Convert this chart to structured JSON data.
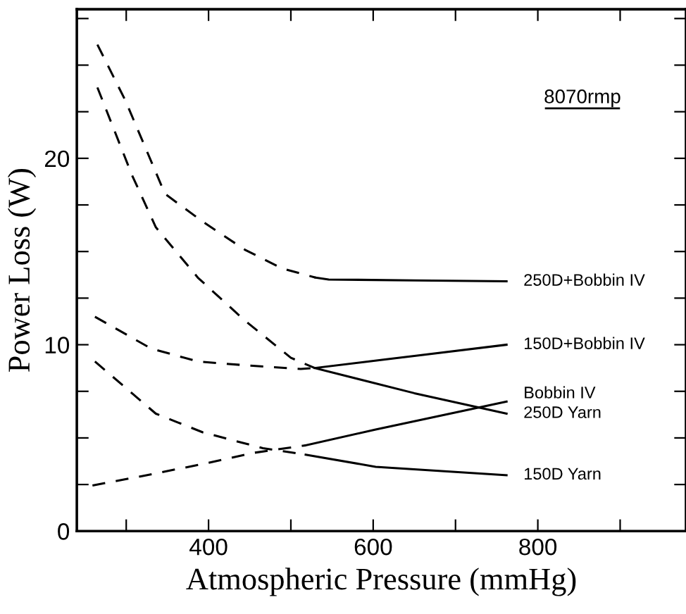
{
  "chart_data": {
    "type": "line",
    "xlabel": "Atmospheric Pressure (mmHg)",
    "ylabel": "Power Loss (W)",
    "annotations": [
      "8070rmp"
    ],
    "xlim": [
      240,
      980
    ],
    "ylim": [
      0,
      28
    ],
    "xticks": [
      {
        "value": 300,
        "label": null
      },
      400,
      {
        "value": 500,
        "label": null
      },
      600,
      {
        "value": 700,
        "label": null
      },
      800,
      {
        "value": 900,
        "label": null
      }
    ],
    "yticks": [
      0,
      {
        "value": 2.5,
        "label": null
      },
      {
        "value": 5,
        "label": null
      },
      {
        "value": 7.5,
        "label": null
      },
      10,
      {
        "value": 12.5,
        "label": null
      },
      {
        "value": 15,
        "label": null
      },
      {
        "value": 17.5,
        "label": null
      },
      20,
      {
        "value": 22.5,
        "label": null
      },
      {
        "value": 25,
        "label": null
      },
      {
        "value": 27.5,
        "label": null
      }
    ],
    "grid": false,
    "legend": "right",
    "marker": "none",
    "series": [
      {
        "color": "#000000",
        "line_style": "dashed",
        "x": [
          265,
          299,
          347,
          393,
          444,
          489,
          530
        ],
        "values": [
          26.1,
          23.1,
          18.1,
          16.6,
          15.1,
          14.1,
          13.6
        ]
      },
      {
        "name": "250D+Bobbin IV",
        "color": "#000000",
        "line_style": "solid",
        "x": [
          530,
          546,
          650,
          762
        ],
        "values": [
          13.6,
          13.5,
          13.45,
          13.4
        ]
      },
      {
        "color": "#000000",
        "line_style": "dashed",
        "x": [
          262,
          330,
          387,
          444,
          512,
          529
        ],
        "values": [
          11.5,
          9.8,
          9.1,
          8.9,
          8.7,
          8.75
        ]
      },
      {
        "name": "150D+Bobbin IV",
        "color": "#000000",
        "line_style": "solid",
        "x": [
          529,
          650,
          762
        ],
        "values": [
          8.75,
          9.4,
          10.0
        ]
      },
      {
        "color": "#000000",
        "line_style": "dashed",
        "x": [
          259,
          319,
          393,
          455,
          518
        ],
        "values": [
          2.45,
          2.95,
          3.6,
          4.2,
          4.6
        ]
      },
      {
        "name": "Bobbin IV",
        "color": "#000000",
        "line_style": "solid",
        "x": [
          518,
          603,
          762
        ],
        "values": [
          4.6,
          5.45,
          6.95
        ]
      },
      {
        "color": "#000000",
        "line_style": "dashed",
        "x": [
          265,
          307,
          336,
          387,
          444,
          500,
          529
        ],
        "values": [
          23.8,
          19.1,
          16.3,
          13.6,
          11.3,
          9.3,
          8.75
        ]
      },
      {
        "name": "250D Yarn",
        "color": "#000000",
        "line_style": "solid",
        "x": [
          529,
          650,
          762
        ],
        "values": [
          8.75,
          7.4,
          6.3
        ]
      },
      {
        "color": "#000000",
        "line_style": "dashed",
        "x": [
          262,
          336,
          393,
          466,
          518
        ],
        "values": [
          9.1,
          6.3,
          5.3,
          4.45,
          4.1
        ]
      },
      {
        "name": "150D Yarn",
        "color": "#000000",
        "line_style": "solid",
        "x": [
          518,
          603,
          762
        ],
        "values": [
          4.1,
          3.45,
          3.0
        ]
      }
    ]
  }
}
